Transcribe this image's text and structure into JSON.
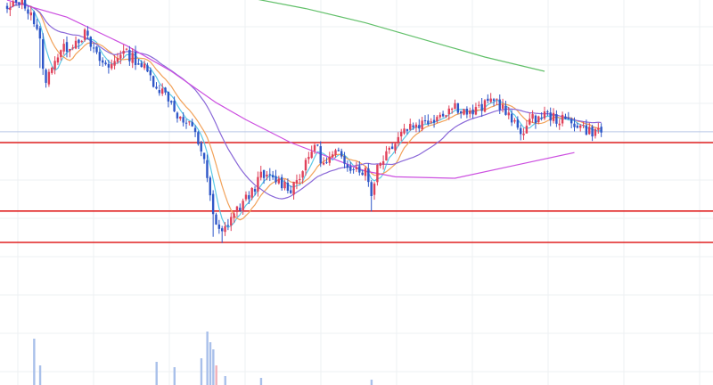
{
  "chart_data": {
    "type": "candlestick",
    "grid": true,
    "price_range": [
      0,
      100
    ],
    "x_range": [
      0,
      200
    ],
    "colors": {
      "up": "#e0415a",
      "down": "#2f57c8",
      "volume": "#a9c0ea",
      "volume_up": "#f1b0b8",
      "price_line": "#b9c7e6",
      "level": "#e02020",
      "ma_5": "#5bc8e6",
      "ma_10": "#f2a25a",
      "ma_25": "#8a68d8",
      "ma_75": "#cc4fe0",
      "ma_200": "#62c06a"
    },
    "last_price": 53.8,
    "levels": [
      50.0,
      26.0,
      15.0
    ],
    "ma_anchors": {
      "ma_75": [
        [
          0,
          100
        ],
        [
          20,
          94
        ],
        [
          40,
          84
        ],
        [
          55,
          75
        ],
        [
          70,
          64
        ],
        [
          80,
          58
        ],
        [
          95,
          50
        ],
        [
          110,
          44
        ],
        [
          120,
          40
        ],
        [
          130,
          38
        ],
        [
          150,
          37.5
        ],
        [
          170,
          42
        ],
        [
          190,
          46.5
        ]
      ],
      "ma_200": [
        [
          75,
          102
        ],
        [
          100,
          97
        ],
        [
          120,
          92
        ],
        [
          140,
          86
        ],
        [
          160,
          80
        ],
        [
          180,
          75
        ]
      ]
    }
  }
}
